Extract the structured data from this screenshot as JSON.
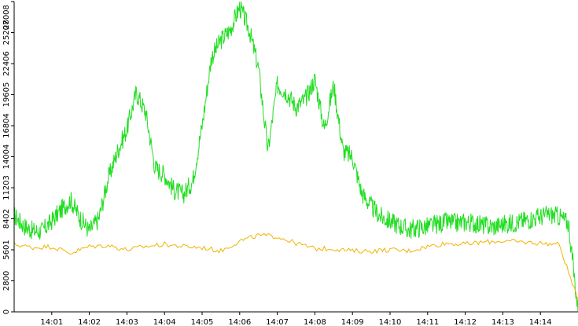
{
  "chart_data": {
    "type": "line",
    "title": "",
    "xlabel": "",
    "ylabel": "",
    "xlim": [
      "14:00",
      "14:15"
    ],
    "ylim": [
      0,
      28008
    ],
    "x_ticks": [
      "14:01",
      "14:02",
      "14:03",
      "14:04",
      "14:05",
      "14:06",
      "14:07",
      "14:08",
      "14:09",
      "14:10",
      "14:11",
      "14:12",
      "14:13",
      "14:14"
    ],
    "y_ticks": [
      0,
      2800,
      5601,
      8402,
      11203,
      14004,
      16804,
      19605,
      22406,
      25207,
      28008
    ],
    "grid": false,
    "legend": "none",
    "series": [
      {
        "color": "#22dd22",
        "x": [
          "14:00:00",
          "14:00:15",
          "14:00:30",
          "14:00:45",
          "14:01:00",
          "14:01:15",
          "14:01:30",
          "14:01:45",
          "14:02:00",
          "14:02:15",
          "14:02:30",
          "14:02:45",
          "14:03:00",
          "14:03:15",
          "14:03:30",
          "14:03:45",
          "14:04:00",
          "14:04:15",
          "14:04:30",
          "14:04:45",
          "14:05:00",
          "14:05:15",
          "14:05:30",
          "14:05:45",
          "14:06:00",
          "14:06:15",
          "14:06:30",
          "14:06:45",
          "14:07:00",
          "14:07:15",
          "14:07:30",
          "14:07:45",
          "14:08:00",
          "14:08:15",
          "14:08:30",
          "14:08:45",
          "14:09:00",
          "14:09:15",
          "14:09:30",
          "14:09:45",
          "14:10:00",
          "14:10:15",
          "14:10:30",
          "14:10:45",
          "14:11:00",
          "14:11:15",
          "14:11:30",
          "14:11:45",
          "14:12:00",
          "14:12:15",
          "14:12:30",
          "14:12:45",
          "14:13:00",
          "14:13:15",
          "14:13:30",
          "14:13:45",
          "14:14:00",
          "14:14:15",
          "14:14:30",
          "14:14:45",
          "14:15:00"
        ],
        "values": [
          8700,
          7800,
          7300,
          7300,
          8200,
          9200,
          10100,
          8500,
          7300,
          8400,
          12000,
          14500,
          16500,
          19800,
          18000,
          13000,
          12400,
          11000,
          10600,
          11800,
          16800,
          23000,
          24500,
          25500,
          27500,
          25500,
          22000,
          14500,
          20500,
          19800,
          18500,
          19200,
          21000,
          16500,
          20500,
          14500,
          14000,
          10700,
          9500,
          8600,
          8200,
          7800,
          7400,
          7600,
          7700,
          7900,
          8100,
          8000,
          8100,
          8000,
          7800,
          7700,
          7900,
          8000,
          8200,
          8400,
          8600,
          8800,
          8600,
          8000,
          0
        ]
      },
      {
        "color": "#f0b400",
        "x": [
          "14:00:00",
          "14:00:30",
          "14:01:00",
          "14:01:30",
          "14:02:00",
          "14:02:30",
          "14:03:00",
          "14:03:30",
          "14:04:00",
          "14:04:30",
          "14:05:00",
          "14:05:30",
          "14:06:00",
          "14:06:30",
          "14:07:00",
          "14:07:30",
          "14:08:00",
          "14:08:30",
          "14:09:00",
          "14:09:30",
          "14:10:00",
          "14:10:30",
          "14:11:00",
          "14:11:30",
          "14:12:00",
          "14:12:30",
          "14:13:00",
          "14:13:30",
          "14:14:00",
          "14:14:30",
          "14:15:00"
        ],
        "values": [
          6100,
          5800,
          5900,
          5300,
          5900,
          6000,
          5600,
          5900,
          6100,
          5900,
          5800,
          5500,
          6400,
          6900,
          6800,
          6200,
          5700,
          5700,
          5500,
          5500,
          5600,
          5500,
          5900,
          6200,
          6100,
          6300,
          6400,
          6300,
          6200,
          6100,
          1000
        ]
      }
    ]
  }
}
